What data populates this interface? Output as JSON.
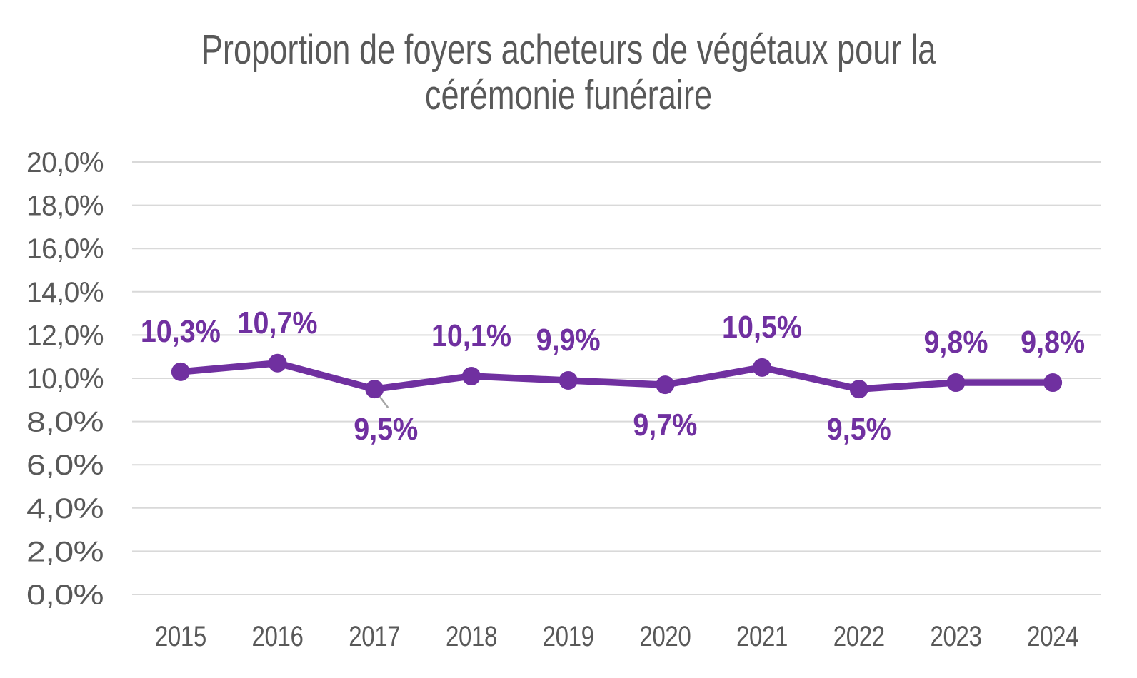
{
  "chart_data": {
    "type": "line",
    "title": "Proportion de foyers acheteurs de végétaux pour la cérémonie funéraire",
    "title_lines": [
      "Proportion de foyers acheteurs de végétaux pour la",
      "cérémonie funéraire"
    ],
    "categories": [
      "2015",
      "2016",
      "2017",
      "2018",
      "2019",
      "2020",
      "2021",
      "2022",
      "2023",
      "2024"
    ],
    "series": [
      {
        "values": [
          10.3,
          10.7,
          9.5,
          10.1,
          9.9,
          9.7,
          10.5,
          9.5,
          9.8,
          9.8
        ],
        "point_labels": [
          "10,3%",
          "10,7%",
          "9,5%",
          "10,1%",
          "9,9%",
          "9,7%",
          "10,5%",
          "9,5%",
          "9,8%",
          "9,8%"
        ],
        "label_positions": [
          "above",
          "above",
          "below",
          "above",
          "above",
          "below",
          "above",
          "below",
          "above",
          "above"
        ],
        "leader_line_point_index": 2,
        "color": "#7030A0"
      }
    ],
    "y_axis": {
      "min": 0,
      "max": 20,
      "step": 2,
      "tick_labels": [
        "20,0%",
        "18,0%",
        "16,0%",
        "14,0%",
        "12,0%",
        "10,0%",
        "8,0%",
        "6,0%",
        "4,0%",
        "2,0%",
        "0,0%"
      ]
    },
    "grid": {
      "horizontal": true,
      "vertical": false
    },
    "legend": {
      "visible": false
    },
    "colors": {
      "line": "#7030A0",
      "data_labels": "#7030A0",
      "markers": "#7030A0",
      "axis_text": "#595959",
      "title_text": "#595959",
      "gridlines": "#D9D9D9",
      "leader_line": "#A6A6A6",
      "background": "#FFFFFF"
    }
  }
}
